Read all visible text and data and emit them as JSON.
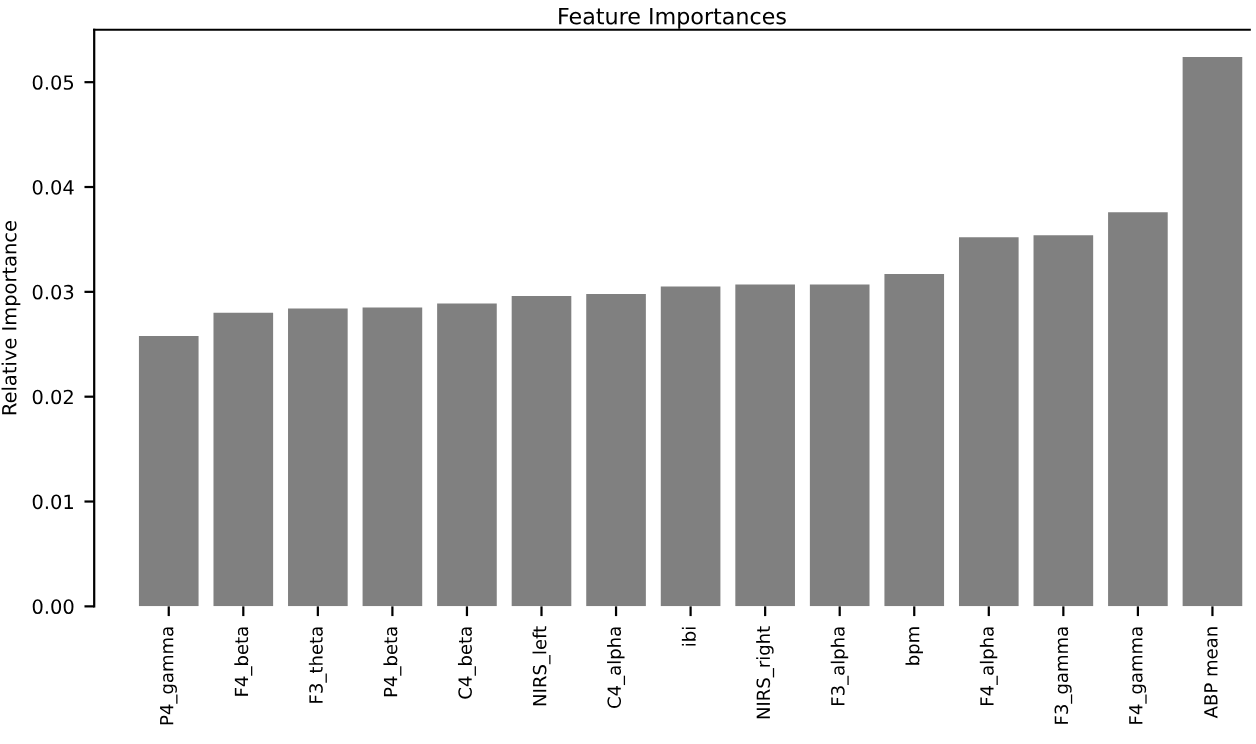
{
  "chart_data": {
    "type": "bar",
    "title": "Feature Importances",
    "ylabel": "Relative Importance",
    "categories": [
      "P4_gamma",
      "F4_beta",
      "F3_theta",
      "P4_beta",
      "C4_beta",
      "NIRS_left",
      "C4_alpha",
      "ibi",
      "NIRS_right",
      "F3_alpha",
      "bpm",
      "F4_alpha",
      "F3_gamma",
      "F4_gamma",
      "ABP mean"
    ],
    "values": [
      0.0258,
      0.028,
      0.0284,
      0.0285,
      0.0289,
      0.0296,
      0.0298,
      0.0305,
      0.0307,
      0.0307,
      0.0317,
      0.0352,
      0.0354,
      0.0376,
      0.0524
    ],
    "color": "#808080",
    "ylim": [
      0,
      0.055
    ],
    "yticks": [
      {
        "value": 0,
        "label": "0.00"
      },
      {
        "value": 0.01,
        "label": "0.01"
      },
      {
        "value": 0.02,
        "label": "0.02"
      },
      {
        "value": 0.03,
        "label": "0.03"
      },
      {
        "value": 0.04,
        "label": "0.04"
      },
      {
        "value": 0.05,
        "label": "0.05"
      }
    ],
    "grid": false,
    "legend": false
  }
}
